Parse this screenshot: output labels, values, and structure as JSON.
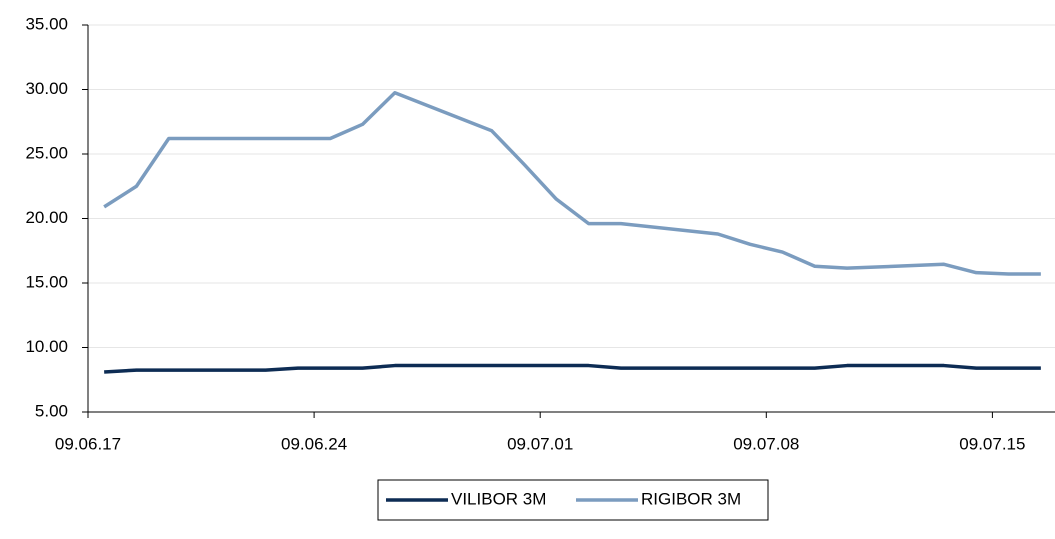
{
  "chart_data": {
    "type": "line",
    "x": [
      "09.06.17",
      "09.06.18",
      "09.06.19",
      "09.06.22",
      "09.06.23",
      "09.06.24",
      "09.06.25",
      "09.06.26",
      "09.06.29",
      "09.06.30",
      "09.07.01",
      "09.07.02",
      "09.07.03",
      "09.07.06",
      "09.07.07",
      "09.07.08",
      "09.07.09",
      "09.07.10",
      "09.07.13",
      "09.07.14",
      "09.07.15",
      "09.07.16"
    ],
    "series": [
      {
        "name": "VILIBOR 3M",
        "color": "#0d2c54",
        "values": [
          8.1,
          8.25,
          8.25,
          8.25,
          8.4,
          8.4,
          8.4,
          8.6,
          8.6,
          8.6,
          8.6,
          8.6,
          8.4,
          8.4,
          8.4,
          8.4,
          8.4,
          8.6,
          8.6,
          8.4,
          8.4,
          8.4
        ]
      },
      {
        "name": "RIGIBOR 3M",
        "color": "#7b9cbf",
        "values": [
          20.9,
          22.5,
          26.2,
          26.2,
          26.2,
          26.2,
          27.3,
          29.75,
          26.8,
          24.2,
          21.5,
          19.6,
          19.6,
          18.8,
          18.0,
          17.4,
          16.3,
          16.15,
          16.45,
          15.8,
          15.7,
          15.7
        ]
      }
    ],
    "xlim": [
      "09.06.17",
      "09.07.17"
    ],
    "xticks": [
      "09.06.17",
      "09.06.24",
      "09.07.01",
      "09.07.08",
      "09.07.15"
    ],
    "ylim": [
      5,
      35
    ],
    "yticks": [
      {
        "value": 5,
        "label": "5.00"
      },
      {
        "value": 10,
        "label": "10.00"
      },
      {
        "value": 15,
        "label": "15.00"
      },
      {
        "value": 20,
        "label": "20.00"
      },
      {
        "value": 25,
        "label": "25.00"
      },
      {
        "value": 30,
        "label": "30.00"
      },
      {
        "value": 35,
        "label": "35.00"
      }
    ],
    "grid": true,
    "legend": "bottom"
  }
}
